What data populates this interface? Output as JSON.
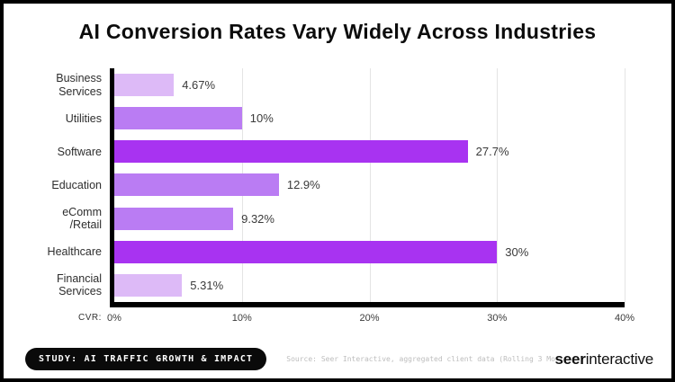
{
  "title": "AI Conversion Rates Vary Widely Across Industries",
  "chart_data": {
    "type": "bar",
    "orientation": "horizontal",
    "title": "AI Conversion Rates Vary Widely Across Industries",
    "categories": [
      "Business Services",
      "Utilities",
      "Software",
      "Education",
      "eComm /Retail",
      "Healthcare",
      "Financial Services"
    ],
    "category_lines": [
      [
        "Business",
        "Services"
      ],
      [
        "Utilities"
      ],
      [
        "Software"
      ],
      [
        "Education"
      ],
      [
        "eComm",
        "/Retail"
      ],
      [
        "Healthcare"
      ],
      [
        "Financial",
        "Services"
      ]
    ],
    "values": [
      4.67,
      10,
      27.7,
      12.9,
      9.32,
      30,
      5.31
    ],
    "value_labels": [
      "4.67%",
      "10%",
      "27.7%",
      "12.9%",
      "9.32%",
      "30%",
      "5.31%"
    ],
    "bar_colors": [
      "#ddbaf7",
      "#ba7cf3",
      "#a833f1",
      "#ba7cf3",
      "#ba7cf3",
      "#a833f1",
      "#ddbaf7"
    ],
    "xlabel": "CVR:",
    "x_ticks": [
      "0%",
      "10%",
      "20%",
      "30%",
      "40%"
    ],
    "xlim": [
      0,
      40
    ],
    "grid": "vertical",
    "legend": "none"
  },
  "footer": {
    "badge": "STUDY: AI TRAFFIC GROWTH & IMPACT",
    "source": "Source: Seer Interactive, aggregated client data (Rolling 3 Months: May-Jul'25)",
    "logo": {
      "bold": "seer",
      "regular": "interactive"
    }
  }
}
